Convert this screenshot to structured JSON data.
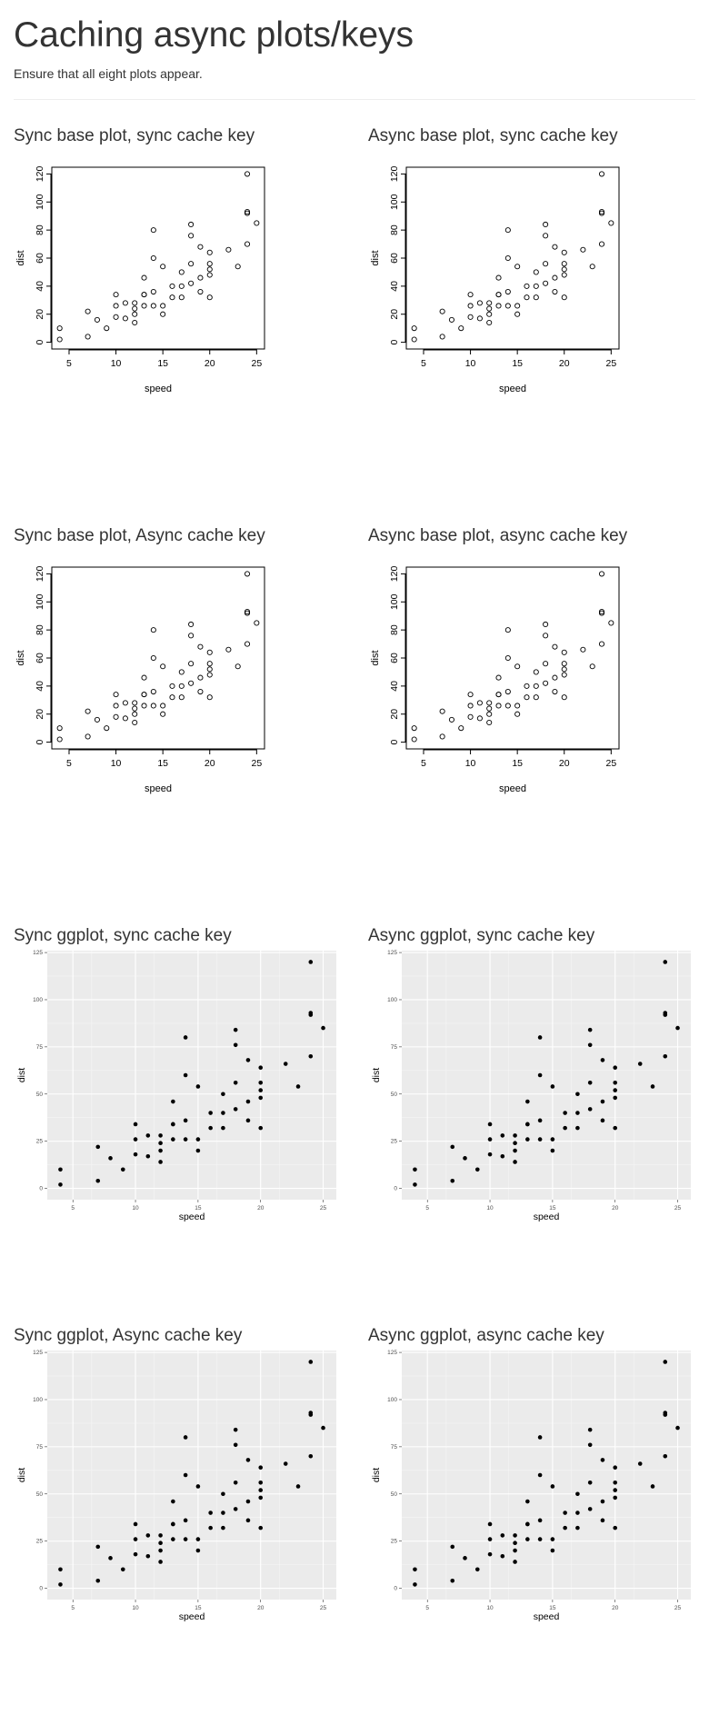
{
  "page": {
    "title": "Caching async plots/keys",
    "subtitle": "Ensure that all eight plots appear."
  },
  "plots": [
    {
      "title": "Sync base plot, sync cache key"
    },
    {
      "title": "Async base plot, sync cache key"
    },
    {
      "title": "Sync base plot, Async cache key"
    },
    {
      "title": "Async base plot, async cache key"
    },
    {
      "title": "Sync ggplot, sync cache key"
    },
    {
      "title": "Async ggplot, sync cache key"
    },
    {
      "title": "Sync ggplot, Async cache key"
    },
    {
      "title": "Async ggplot, async cache key"
    }
  ],
  "chart_data": [
    {
      "type": "scatter",
      "style": "base",
      "xlabel": "speed",
      "ylabel": "dist",
      "xlim": [
        4,
        25
      ],
      "ylim": [
        0,
        120
      ],
      "xticks": [
        5,
        10,
        15,
        20,
        25
      ],
      "yticks": [
        0,
        20,
        40,
        60,
        80,
        100,
        120
      ],
      "x": [
        4,
        4,
        7,
        7,
        8,
        9,
        10,
        10,
        10,
        11,
        11,
        12,
        12,
        12,
        12,
        13,
        13,
        13,
        13,
        14,
        14,
        14,
        14,
        15,
        15,
        15,
        16,
        16,
        17,
        17,
        17,
        18,
        18,
        18,
        18,
        19,
        19,
        19,
        20,
        20,
        20,
        20,
        20,
        22,
        23,
        24,
        24,
        24,
        24,
        25
      ],
      "y": [
        2,
        10,
        4,
        22,
        16,
        10,
        18,
        26,
        34,
        17,
        28,
        14,
        20,
        24,
        28,
        26,
        34,
        34,
        46,
        26,
        36,
        60,
        80,
        20,
        26,
        54,
        32,
        40,
        32,
        40,
        50,
        42,
        56,
        76,
        84,
        36,
        46,
        68,
        32,
        48,
        52,
        56,
        64,
        66,
        54,
        70,
        92,
        93,
        120,
        85
      ]
    },
    {
      "type": "scatter",
      "style": "base",
      "xlabel": "speed",
      "ylabel": "dist",
      "xlim": [
        4,
        25
      ],
      "ylim": [
        0,
        120
      ],
      "xticks": [
        5,
        10,
        15,
        20,
        25
      ],
      "yticks": [
        0,
        20,
        40,
        60,
        80,
        100,
        120
      ],
      "x": [
        4,
        4,
        7,
        7,
        8,
        9,
        10,
        10,
        10,
        11,
        11,
        12,
        12,
        12,
        12,
        13,
        13,
        13,
        13,
        14,
        14,
        14,
        14,
        15,
        15,
        15,
        16,
        16,
        17,
        17,
        17,
        18,
        18,
        18,
        18,
        19,
        19,
        19,
        20,
        20,
        20,
        20,
        20,
        22,
        23,
        24,
        24,
        24,
        24,
        25
      ],
      "y": [
        2,
        10,
        4,
        22,
        16,
        10,
        18,
        26,
        34,
        17,
        28,
        14,
        20,
        24,
        28,
        26,
        34,
        34,
        46,
        26,
        36,
        60,
        80,
        20,
        26,
        54,
        32,
        40,
        32,
        40,
        50,
        42,
        56,
        76,
        84,
        36,
        46,
        68,
        32,
        48,
        52,
        56,
        64,
        66,
        54,
        70,
        92,
        93,
        120,
        85
      ]
    },
    {
      "type": "scatter",
      "style": "base",
      "xlabel": "speed",
      "ylabel": "dist",
      "xlim": [
        4,
        25
      ],
      "ylim": [
        0,
        120
      ],
      "xticks": [
        5,
        10,
        15,
        20,
        25
      ],
      "yticks": [
        0,
        20,
        40,
        60,
        80,
        100,
        120
      ],
      "x": [
        4,
        4,
        7,
        7,
        8,
        9,
        10,
        10,
        10,
        11,
        11,
        12,
        12,
        12,
        12,
        13,
        13,
        13,
        13,
        14,
        14,
        14,
        14,
        15,
        15,
        15,
        16,
        16,
        17,
        17,
        17,
        18,
        18,
        18,
        18,
        19,
        19,
        19,
        20,
        20,
        20,
        20,
        20,
        22,
        23,
        24,
        24,
        24,
        24,
        25
      ],
      "y": [
        2,
        10,
        4,
        22,
        16,
        10,
        18,
        26,
        34,
        17,
        28,
        14,
        20,
        24,
        28,
        26,
        34,
        34,
        46,
        26,
        36,
        60,
        80,
        20,
        26,
        54,
        32,
        40,
        32,
        40,
        50,
        42,
        56,
        76,
        84,
        36,
        46,
        68,
        32,
        48,
        52,
        56,
        64,
        66,
        54,
        70,
        92,
        93,
        120,
        85
      ]
    },
    {
      "type": "scatter",
      "style": "base",
      "xlabel": "speed",
      "ylabel": "dist",
      "xlim": [
        4,
        25
      ],
      "ylim": [
        0,
        120
      ],
      "xticks": [
        5,
        10,
        15,
        20,
        25
      ],
      "yticks": [
        0,
        20,
        40,
        60,
        80,
        100,
        120
      ],
      "x": [
        4,
        4,
        7,
        7,
        8,
        9,
        10,
        10,
        10,
        11,
        11,
        12,
        12,
        12,
        12,
        13,
        13,
        13,
        13,
        14,
        14,
        14,
        14,
        15,
        15,
        15,
        16,
        16,
        17,
        17,
        17,
        18,
        18,
        18,
        18,
        19,
        19,
        19,
        20,
        20,
        20,
        20,
        20,
        22,
        23,
        24,
        24,
        24,
        24,
        25
      ],
      "y": [
        2,
        10,
        4,
        22,
        16,
        10,
        18,
        26,
        34,
        17,
        28,
        14,
        20,
        24,
        28,
        26,
        34,
        34,
        46,
        26,
        36,
        60,
        80,
        20,
        26,
        54,
        32,
        40,
        32,
        40,
        50,
        42,
        56,
        76,
        84,
        36,
        46,
        68,
        32,
        48,
        52,
        56,
        64,
        66,
        54,
        70,
        92,
        93,
        120,
        85
      ]
    },
    {
      "type": "scatter",
      "style": "ggplot",
      "xlabel": "speed",
      "ylabel": "dist",
      "xlim": [
        4,
        25
      ],
      "ylim": [
        0,
        125
      ],
      "xticks": [
        5,
        10,
        15,
        20,
        25
      ],
      "yticks": [
        0,
        25,
        50,
        75,
        100,
        125
      ],
      "grid": true,
      "panel_color": "#ebebeb",
      "x": [
        4,
        4,
        7,
        7,
        8,
        9,
        10,
        10,
        10,
        11,
        11,
        12,
        12,
        12,
        12,
        13,
        13,
        13,
        13,
        14,
        14,
        14,
        14,
        15,
        15,
        15,
        16,
        16,
        17,
        17,
        17,
        18,
        18,
        18,
        18,
        19,
        19,
        19,
        20,
        20,
        20,
        20,
        20,
        22,
        23,
        24,
        24,
        24,
        24,
        25
      ],
      "y": [
        2,
        10,
        4,
        22,
        16,
        10,
        18,
        26,
        34,
        17,
        28,
        14,
        20,
        24,
        28,
        26,
        34,
        34,
        46,
        26,
        36,
        60,
        80,
        20,
        26,
        54,
        32,
        40,
        32,
        40,
        50,
        42,
        56,
        76,
        84,
        36,
        46,
        68,
        32,
        48,
        52,
        56,
        64,
        66,
        54,
        70,
        92,
        93,
        120,
        85
      ]
    },
    {
      "type": "scatter",
      "style": "ggplot",
      "xlabel": "speed",
      "ylabel": "dist",
      "xlim": [
        4,
        25
      ],
      "ylim": [
        0,
        125
      ],
      "xticks": [
        5,
        10,
        15,
        20,
        25
      ],
      "yticks": [
        0,
        25,
        50,
        75,
        100,
        125
      ],
      "grid": true,
      "panel_color": "#ebebeb",
      "x": [
        4,
        4,
        7,
        7,
        8,
        9,
        10,
        10,
        10,
        11,
        11,
        12,
        12,
        12,
        12,
        13,
        13,
        13,
        13,
        14,
        14,
        14,
        14,
        15,
        15,
        15,
        16,
        16,
        17,
        17,
        17,
        18,
        18,
        18,
        18,
        19,
        19,
        19,
        20,
        20,
        20,
        20,
        20,
        22,
        23,
        24,
        24,
        24,
        24,
        25
      ],
      "y": [
        2,
        10,
        4,
        22,
        16,
        10,
        18,
        26,
        34,
        17,
        28,
        14,
        20,
        24,
        28,
        26,
        34,
        34,
        46,
        26,
        36,
        60,
        80,
        20,
        26,
        54,
        32,
        40,
        32,
        40,
        50,
        42,
        56,
        76,
        84,
        36,
        46,
        68,
        32,
        48,
        52,
        56,
        64,
        66,
        54,
        70,
        92,
        93,
        120,
        85
      ]
    },
    {
      "type": "scatter",
      "style": "ggplot",
      "xlabel": "speed",
      "ylabel": "dist",
      "xlim": [
        4,
        25
      ],
      "ylim": [
        0,
        125
      ],
      "xticks": [
        5,
        10,
        15,
        20,
        25
      ],
      "yticks": [
        0,
        25,
        50,
        75,
        100,
        125
      ],
      "grid": true,
      "panel_color": "#ebebeb",
      "x": [
        4,
        4,
        7,
        7,
        8,
        9,
        10,
        10,
        10,
        11,
        11,
        12,
        12,
        12,
        12,
        13,
        13,
        13,
        13,
        14,
        14,
        14,
        14,
        15,
        15,
        15,
        16,
        16,
        17,
        17,
        17,
        18,
        18,
        18,
        18,
        19,
        19,
        19,
        20,
        20,
        20,
        20,
        20,
        22,
        23,
        24,
        24,
        24,
        24,
        25
      ],
      "y": [
        2,
        10,
        4,
        22,
        16,
        10,
        18,
        26,
        34,
        17,
        28,
        14,
        20,
        24,
        28,
        26,
        34,
        34,
        46,
        26,
        36,
        60,
        80,
        20,
        26,
        54,
        32,
        40,
        32,
        40,
        50,
        42,
        56,
        76,
        84,
        36,
        46,
        68,
        32,
        48,
        52,
        56,
        64,
        66,
        54,
        70,
        92,
        93,
        120,
        85
      ]
    },
    {
      "type": "scatter",
      "style": "ggplot",
      "xlabel": "speed",
      "ylabel": "dist",
      "xlim": [
        4,
        25
      ],
      "ylim": [
        0,
        125
      ],
      "xticks": [
        5,
        10,
        15,
        20,
        25
      ],
      "yticks": [
        0,
        25,
        50,
        75,
        100,
        125
      ],
      "grid": true,
      "panel_color": "#ebebeb",
      "x": [
        4,
        4,
        7,
        7,
        8,
        9,
        10,
        10,
        10,
        11,
        11,
        12,
        12,
        12,
        12,
        13,
        13,
        13,
        13,
        14,
        14,
        14,
        14,
        15,
        15,
        15,
        16,
        16,
        17,
        17,
        17,
        18,
        18,
        18,
        18,
        19,
        19,
        19,
        20,
        20,
        20,
        20,
        20,
        22,
        23,
        24,
        24,
        24,
        24,
        25
      ],
      "y": [
        2,
        10,
        4,
        22,
        16,
        10,
        18,
        26,
        34,
        17,
        28,
        14,
        20,
        24,
        28,
        26,
        34,
        34,
        46,
        26,
        36,
        60,
        80,
        20,
        26,
        54,
        32,
        40,
        32,
        40,
        50,
        42,
        56,
        76,
        84,
        36,
        46,
        68,
        32,
        48,
        52,
        56,
        64,
        66,
        54,
        70,
        92,
        93,
        120,
        85
      ]
    }
  ]
}
